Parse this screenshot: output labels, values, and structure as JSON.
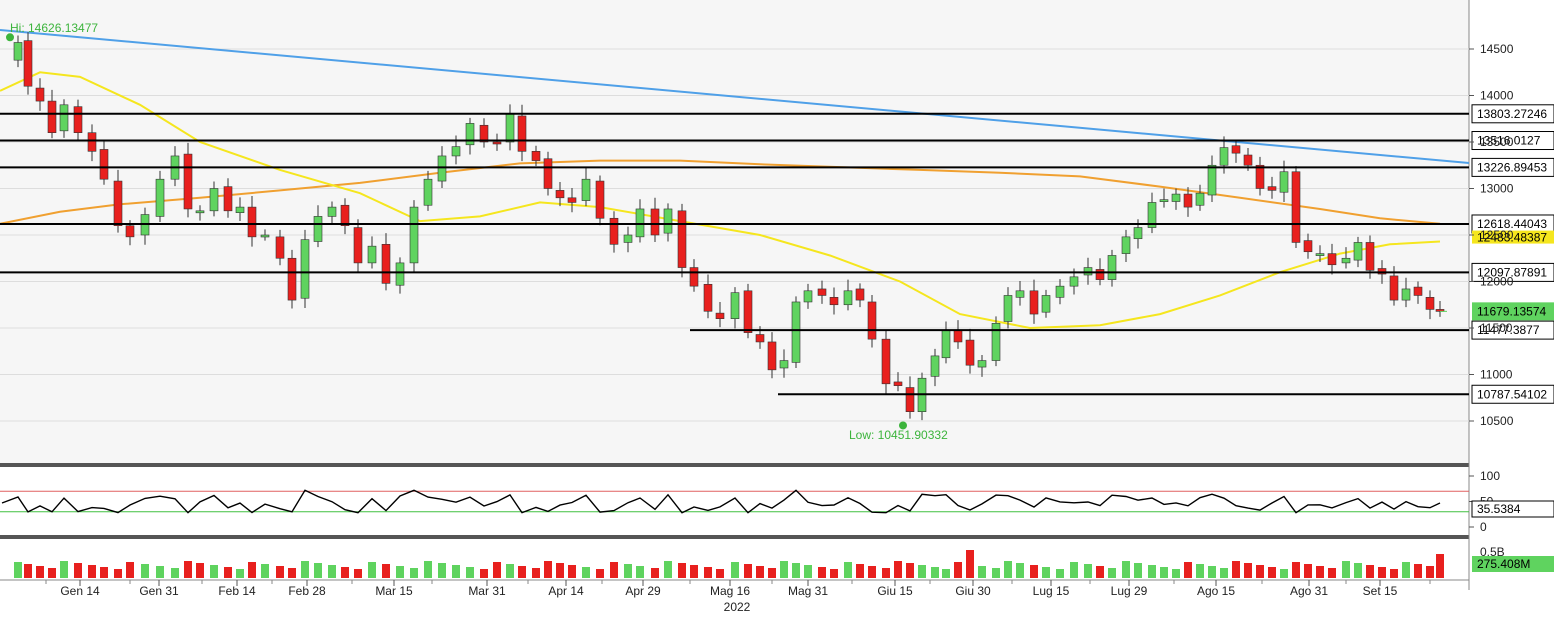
{
  "chart_data": [
    {
      "panel": "price",
      "type": "candlestick",
      "x": [
        "Gen 14",
        "Gen 31",
        "Feb 14",
        "Feb 28",
        "Mar 15",
        "Mar 31",
        "Apr 14",
        "Apr 29",
        "Mag 16",
        "Mag 31",
        "Giu 15",
        "Giu 30",
        "Lug 15",
        "Lug 29",
        "Ago 15",
        "Ago 31",
        "Set 15"
      ],
      "x_year_label": "2022",
      "yticks": [
        10500,
        11000,
        11500,
        12000,
        12500,
        13000,
        13500,
        14000,
        14500
      ],
      "ylim": [
        10100,
        15000
      ],
      "grid": true,
      "hi_annotation": "Hi: 14626.13477",
      "low_annotation": "Low: 10451.90332",
      "last_price_label": "11679.13574",
      "ma_fast_label": "12483.48387",
      "level_labels": [
        "13803.27246",
        "13516.0127",
        "13226.89453",
        "12618.44043",
        "12097.87891",
        "11477.3877",
        "10787.54102"
      ],
      "levels": [
        13803.27246,
        13516.0127,
        13226.89453,
        12618.44043,
        12097.87891,
        11477.3877,
        10787.54102
      ],
      "colors": {
        "up": "#5fd35f",
        "down": "#e8201e",
        "ma_fast": "#f5e61e",
        "ma_slow": "#f0a030",
        "trendline": "#4fa0e8",
        "hi_low_text": "#3cb43c",
        "level_line": "#000000"
      }
    },
    {
      "panel": "rsi",
      "type": "line",
      "yticks": [
        0,
        50,
        100
      ],
      "ylim": [
        0,
        100
      ],
      "last_value_label": "35.5384",
      "thresholds": [
        70,
        30
      ],
      "colors": {
        "line": "#000000",
        "upper": "#e06060",
        "lower": "#40c040"
      }
    },
    {
      "panel": "volume",
      "type": "bar",
      "yticks_label": "0.5B",
      "last_value_label": "275.408M",
      "colors": {
        "up": "#5fd35f",
        "down": "#e8201e"
      }
    }
  ]
}
